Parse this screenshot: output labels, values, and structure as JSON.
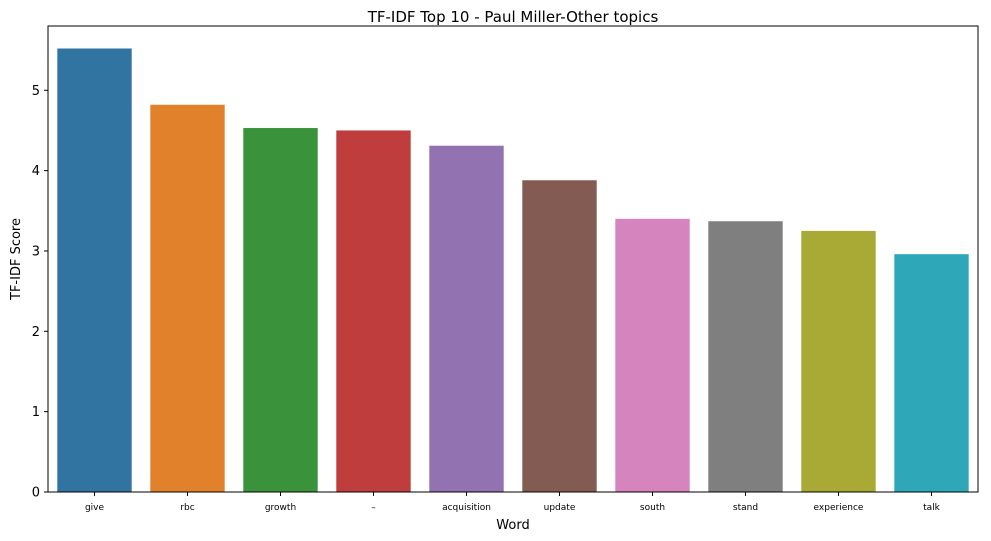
{
  "chart_data": {
    "type": "bar",
    "title": "TF-IDF Top 10 - Paul Miller-Other topics",
    "xlabel": "Word",
    "ylabel": "TF-IDF Score",
    "categories": [
      "give",
      "rbc",
      "growth",
      "–",
      "acquisition",
      "update",
      "south",
      "stand",
      "experience",
      "talk"
    ],
    "values": [
      5.52,
      4.82,
      4.53,
      4.5,
      4.31,
      3.88,
      3.4,
      3.37,
      3.25,
      2.96
    ],
    "colors": [
      "#3274a1",
      "#e1812c",
      "#3a923a",
      "#c03d3e",
      "#9372b2",
      "#845b53",
      "#d684bd",
      "#7f7f7f",
      "#a9aa35",
      "#2ea8b9"
    ],
    "yticks": [
      0,
      1,
      2,
      3,
      4,
      5
    ],
    "ylim": [
      0,
      5.8
    ],
    "grid": false,
    "legend": "none"
  }
}
